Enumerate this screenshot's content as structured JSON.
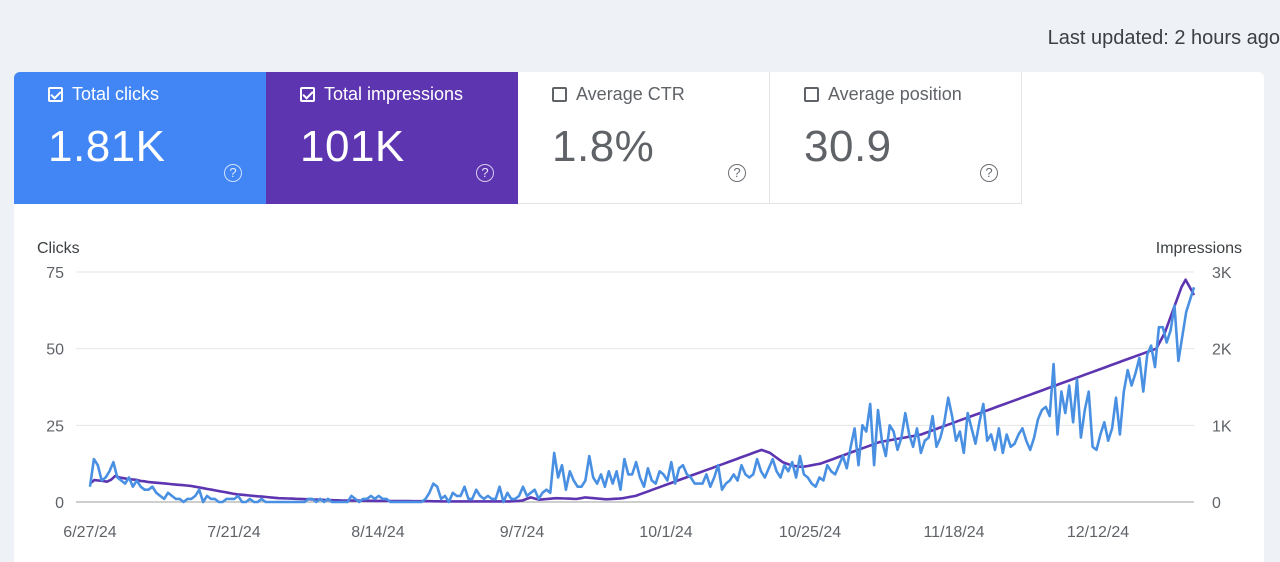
{
  "last_updated": "Last updated: 2 hours ago",
  "cards": [
    {
      "label": "Total clicks",
      "value": "1.81K",
      "checked": true,
      "color": "#4285f4"
    },
    {
      "label": "Total impressions",
      "value": "101K",
      "checked": true,
      "color": "#5e35b1"
    },
    {
      "label": "Average CTR",
      "value": "1.8%",
      "checked": false
    },
    {
      "label": "Average position",
      "value": "30.9",
      "checked": false
    }
  ],
  "chart_data": {
    "type": "line",
    "x_tick_labels": [
      "6/27/24",
      "7/21/24",
      "8/14/24",
      "9/7/24",
      "10/1/24",
      "10/25/24",
      "11/18/24",
      "12/12/24"
    ],
    "y_left": {
      "label": "Clicks",
      "ticks": [
        "0",
        "25",
        "50",
        "75"
      ],
      "range": [
        0,
        75
      ]
    },
    "y_right": {
      "label": "Impressions",
      "ticks": [
        "0",
        "1K",
        "2K",
        "3K"
      ],
      "range": [
        0,
        3000
      ]
    },
    "grid": true,
    "series": [
      {
        "name": "Clicks",
        "axis": "left",
        "color": "#4a90e2",
        "values": [
          5,
          14,
          12,
          7,
          8,
          10,
          13,
          8,
          7,
          6,
          8,
          5,
          7,
          5,
          4,
          4,
          5,
          3,
          2,
          1,
          3,
          2,
          1,
          1,
          0,
          1,
          1,
          2,
          4,
          0,
          2,
          1,
          1,
          0,
          0,
          1,
          1,
          1,
          2,
          0,
          0,
          1,
          0,
          0,
          1,
          0,
          0,
          0,
          0,
          0,
          0,
          0,
          0,
          0,
          0,
          0,
          1,
          1,
          0,
          1,
          0,
          1,
          0,
          0,
          0,
          0,
          0,
          2,
          1,
          0,
          1,
          1,
          2,
          1,
          2,
          1,
          1,
          0,
          0,
          0,
          0,
          0,
          0,
          0,
          0,
          0,
          1,
          3,
          6,
          5,
          1,
          2,
          0,
          3,
          2,
          2,
          5,
          1,
          1,
          4,
          2,
          1,
          2,
          1,
          1,
          5,
          0,
          3,
          1,
          1,
          2,
          5,
          2,
          3,
          4,
          1,
          3,
          4,
          3,
          16,
          8,
          12,
          4,
          10,
          7,
          5,
          5,
          7,
          15,
          8,
          6,
          9,
          5,
          10,
          6,
          10,
          4,
          14,
          9,
          9,
          13,
          8,
          5,
          11,
          7,
          6,
          10,
          9,
          7,
          13,
          6,
          11,
          12,
          9,
          8,
          6,
          6,
          6,
          9,
          5,
          8,
          12,
          4,
          6,
          7,
          9,
          7,
          12,
          9,
          8,
          9,
          14,
          10,
          8,
          11,
          14,
          10,
          8,
          12,
          10,
          13,
          8,
          15,
          9,
          8,
          6,
          5,
          8,
          7,
          12,
          10,
          9,
          12,
          15,
          11,
          18,
          24,
          12,
          25,
          23,
          32,
          12,
          30,
          20,
          15,
          25,
          23,
          17,
          21,
          29,
          22,
          18,
          24,
          16,
          20,
          21,
          28,
          18,
          21,
          26,
          34,
          28,
          20,
          23,
          16,
          29,
          24,
          19,
          26,
          32,
          20,
          22,
          17,
          24,
          16,
          22,
          18,
          19,
          22,
          24,
          20,
          17,
          21,
          27,
          30,
          31,
          28,
          45,
          22,
          36,
          29,
          38,
          26,
          40,
          21,
          30,
          36,
          18,
          17,
          22,
          26,
          20,
          24,
          34,
          22,
          36,
          43,
          38,
          42,
          47,
          36,
          48,
          51,
          44,
          57,
          57,
          52,
          56,
          64,
          46,
          54,
          62,
          66,
          70
        ]
      },
      {
        "name": "Impressions",
        "axis": "right",
        "color": "#5e35b1",
        "values": [
          240,
          285,
          280,
          275,
          265,
          290,
          340,
          320,
          310,
          300,
          295,
          290,
          275,
          270,
          260,
          255,
          250,
          245,
          240,
          235,
          230,
          225,
          220,
          215,
          210,
          200,
          190,
          180,
          170,
          160,
          150,
          140,
          130,
          120,
          110,
          100,
          95,
          90,
          85,
          80,
          75,
          70,
          65,
          60,
          55,
          50,
          48,
          46,
          44,
          42,
          40,
          38,
          36,
          34,
          32,
          30,
          28,
          26,
          24,
          22,
          20,
          20,
          19,
          18,
          18,
          17,
          16,
          16,
          15,
          15,
          14,
          14,
          13,
          13,
          12,
          12,
          12,
          11,
          11,
          10,
          10,
          10,
          9,
          9,
          8,
          8,
          8,
          8,
          8,
          8,
          8,
          8,
          8,
          8,
          8,
          8,
          8,
          8,
          8,
          8,
          8,
          10,
          15,
          20,
          40,
          60,
          45,
          30,
          35,
          40,
          45,
          50,
          48,
          46,
          44,
          42,
          40,
          50,
          60,
          55,
          50,
          45,
          40,
          35,
          38,
          42,
          45,
          50,
          60,
          70,
          80,
          100,
          120,
          140,
          160,
          180,
          200,
          220,
          240,
          260,
          280,
          300,
          320,
          340,
          360,
          380,
          400,
          420,
          440,
          460,
          480,
          500,
          520,
          540,
          560,
          580,
          600,
          620,
          640,
          660,
          680,
          660,
          640,
          600,
          560,
          520,
          500,
          480,
          470,
          460,
          460,
          470,
          480,
          490,
          500,
          520,
          540,
          560,
          580,
          600,
          620,
          640,
          660,
          680,
          700,
          720,
          740,
          760,
          780,
          790,
          800,
          810,
          820,
          830,
          840,
          850,
          860,
          870,
          880,
          900,
          920,
          940,
          960,
          980,
          1000,
          1020,
          1040,
          1060,
          1080,
          1100,
          1120,
          1140,
          1160,
          1180,
          1200,
          1220,
          1240,
          1260,
          1280,
          1300,
          1320,
          1340,
          1360,
          1380,
          1400,
          1420,
          1440,
          1460,
          1480,
          1500,
          1520,
          1540,
          1560,
          1580,
          1600,
          1620,
          1640,
          1660,
          1680,
          1700,
          1720,
          1740,
          1760,
          1780,
          1800,
          1820,
          1840,
          1860,
          1880,
          1900,
          1920,
          1940,
          1960,
          1980,
          2000,
          2100,
          2200,
          2350,
          2500,
          2650,
          2800,
          2900,
          2800,
          2700
        ]
      }
    ]
  }
}
